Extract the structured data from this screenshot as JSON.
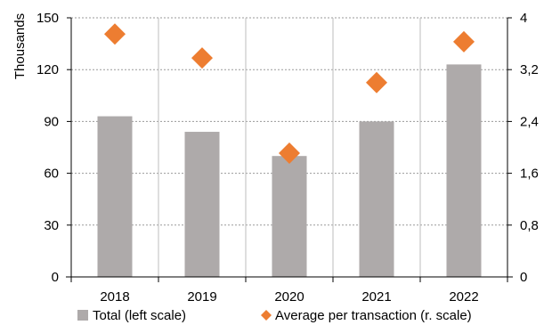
{
  "chart_data": {
    "type": "bar",
    "categories": [
      "2018",
      "2019",
      "2020",
      "2021",
      "2022"
    ],
    "series": [
      {
        "name": "Total (left scale)",
        "type": "bar",
        "axis": "left",
        "values": [
          93,
          84,
          70,
          90,
          123
        ],
        "color": "#aeaaaa"
      },
      {
        "name": "Average per transaction (r. scale)",
        "type": "scatter",
        "marker": "diamond",
        "axis": "right",
        "values": [
          3.75,
          3.38,
          1.91,
          3.0,
          3.63
        ],
        "color": "#ed7d31"
      }
    ],
    "ylabel": "Thousands",
    "ylim": [
      0,
      150
    ],
    "y_ticks": [
      "0",
      "30",
      "60",
      "90",
      "120",
      "150"
    ],
    "y2lim": [
      0,
      4
    ],
    "y2_ticks": [
      "0",
      "0,8",
      "1,6",
      "2,4",
      "3,2",
      "4"
    ],
    "grid": true,
    "legend_position": "bottom"
  }
}
